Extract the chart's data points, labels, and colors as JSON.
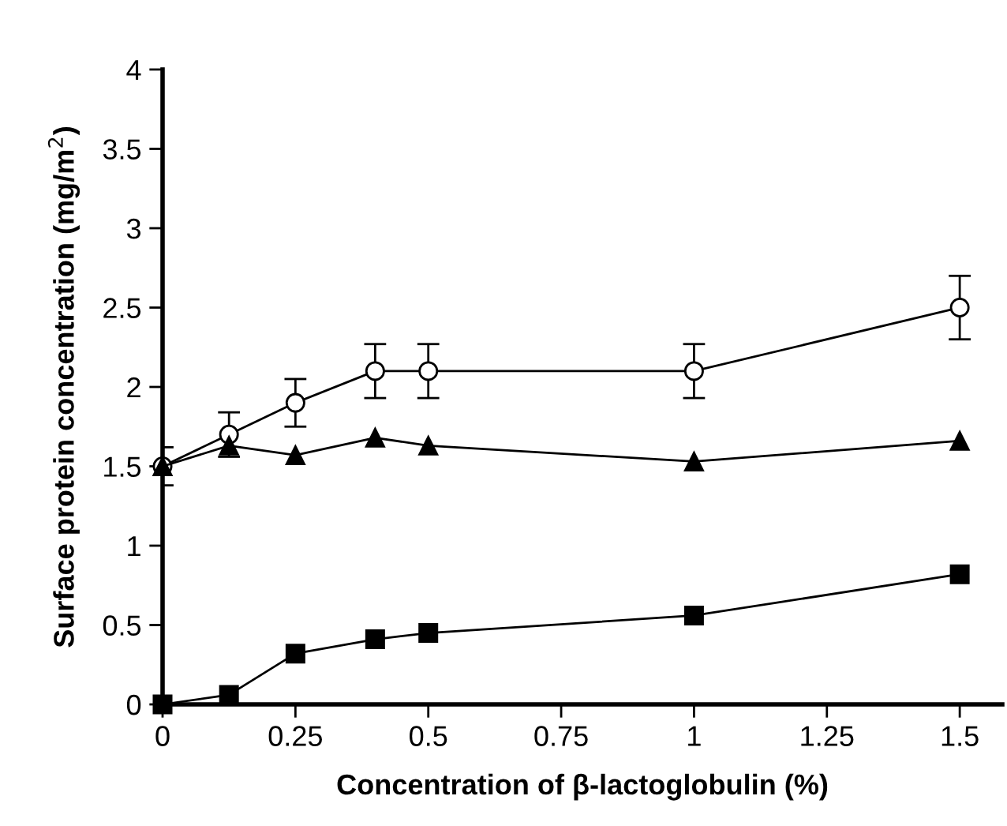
{
  "chart_data": {
    "type": "line",
    "xlabel": "Concentration of β-lactoglobulin (%)",
    "ylabel": "Surface protein concentration (mg/m$^{2}$)",
    "x": [
      0,
      0.125,
      0.25,
      0.4,
      0.5,
      1,
      1.5
    ],
    "series": [
      {
        "color": "#000000",
        "marker": "circle",
        "values": [
          1.5,
          1.7,
          1.9,
          2.1,
          2.1,
          2.1,
          2.5
        ],
        "errors": [
          0.12,
          0.14,
          0.15,
          0.17,
          0.17,
          0.17,
          0.2
        ]
      },
      {
        "color": "#000000",
        "marker": "triangle",
        "values": [
          1.5,
          1.63,
          1.57,
          1.68,
          1.63,
          1.53,
          1.66
        ]
      },
      {
        "color": "#000000",
        "marker": "square",
        "values": [
          0,
          0.06,
          0.32,
          0.41,
          0.45,
          0.56,
          0.82
        ]
      }
    ],
    "xlim": [
      0,
      1.58
    ],
    "xticks": [
      0,
      0.25,
      0.5,
      0.75,
      1,
      1.25,
      1.5
    ],
    "ylim": [
      0,
      4
    ],
    "yticks": [
      0,
      0.5,
      1,
      1.5,
      2,
      2.5,
      3,
      3.5,
      4
    ],
    "grid": false,
    "legend": false,
    "line_style": "solid"
  }
}
